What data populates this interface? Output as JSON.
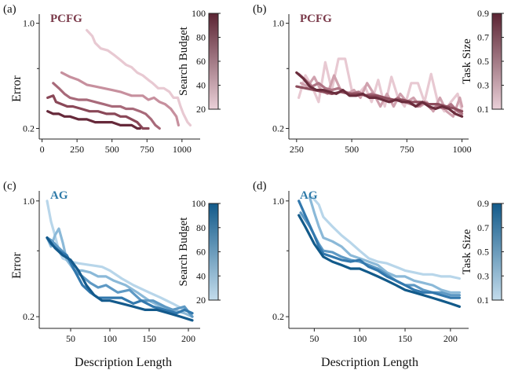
{
  "shared": {
    "ylabel": "Error",
    "xlabel": "Description Length"
  },
  "chart_data": [
    {
      "id": "a",
      "panel_label": "(a)",
      "type": "line",
      "method": "PCFG",
      "method_color": "#7a3a4a",
      "xlim": [
        -20,
        1130
      ],
      "xticks": [
        0,
        250,
        500,
        750,
        1000
      ],
      "ylim": [
        0.17,
        1.15
      ],
      "ylog": true,
      "yticks": [
        1.0,
        0.2
      ],
      "yminor": [
        0.5
      ],
      "colorbar": {
        "label": "Search Budget",
        "range": [
          20,
          100
        ],
        "ticks": [
          20,
          40,
          60,
          80,
          100
        ],
        "colors": [
          "#ead0d8",
          "#5b2433"
        ]
      },
      "series": [
        {
          "param": 20,
          "color": "#e8c9d2",
          "x": [
            320,
            360,
            380,
            420,
            470,
            520,
            560,
            600,
            640,
            680,
            720,
            760,
            790,
            830,
            870,
            910,
            940,
            970,
            990,
            1010,
            1040,
            1060
          ],
          "y": [
            0.9,
            0.82,
            0.74,
            0.68,
            0.66,
            0.61,
            0.57,
            0.53,
            0.51,
            0.47,
            0.45,
            0.42,
            0.4,
            0.37,
            0.37,
            0.35,
            0.32,
            0.32,
            0.28,
            0.25,
            0.22,
            0.21
          ]
        },
        {
          "param": 40,
          "color": "#c7909e",
          "x": [
            140,
            200,
            260,
            320,
            380,
            440,
            500,
            560,
            600,
            640,
            680,
            720,
            760,
            800,
            840,
            880,
            920,
            960,
            975
          ],
          "y": [
            0.47,
            0.44,
            0.42,
            0.39,
            0.38,
            0.37,
            0.36,
            0.35,
            0.34,
            0.33,
            0.33,
            0.33,
            0.31,
            0.32,
            0.3,
            0.29,
            0.27,
            0.24,
            0.21
          ]
        },
        {
          "param": 60,
          "color": "#a86a7a",
          "x": [
            80,
            120,
            160,
            200,
            260,
            320,
            380,
            440,
            500,
            560,
            600,
            650,
            700,
            740,
            780,
            810,
            840
          ],
          "y": [
            0.4,
            0.37,
            0.34,
            0.32,
            0.31,
            0.31,
            0.3,
            0.29,
            0.28,
            0.28,
            0.27,
            0.27,
            0.26,
            0.25,
            0.23,
            0.21,
            0.2
          ]
        },
        {
          "param": 80,
          "color": "#8a4858",
          "x": [
            40,
            80,
            100,
            140,
            180,
            220,
            280,
            340,
            400,
            460,
            520,
            560,
            600,
            640,
            680,
            720,
            760
          ],
          "y": [
            0.32,
            0.33,
            0.3,
            0.29,
            0.28,
            0.28,
            0.27,
            0.26,
            0.26,
            0.25,
            0.25,
            0.24,
            0.24,
            0.23,
            0.22,
            0.2,
            0.2
          ]
        },
        {
          "param": 100,
          "color": "#66293a",
          "x": [
            40,
            80,
            120,
            160,
            200,
            260,
            320,
            380,
            440,
            500,
            560,
            600,
            640,
            680,
            700
          ],
          "y": [
            0.26,
            0.25,
            0.25,
            0.24,
            0.24,
            0.23,
            0.23,
            0.22,
            0.22,
            0.22,
            0.21,
            0.21,
            0.21,
            0.2,
            0.2
          ]
        }
      ]
    },
    {
      "id": "b",
      "panel_label": "(b)",
      "type": "line",
      "method": "PCFG",
      "method_color": "#7a3a4a",
      "xlim": [
        215,
        1030
      ],
      "xticks": [
        250,
        500,
        750,
        1000
      ],
      "ylim": [
        0.17,
        1.15
      ],
      "ylog": true,
      "yticks": [
        1.0,
        0.2
      ],
      "yminor": [
        0.5
      ],
      "colorbar": {
        "label": "Task Size",
        "range": [
          0.1,
          0.9
        ],
        "ticks": [
          0.1,
          0.3,
          0.5,
          0.7,
          0.9
        ],
        "colors": [
          "#ead0d8",
          "#5b2433"
        ]
      },
      "series": [
        {
          "param": 0.1,
          "color": "#e8c9d2",
          "x": [
            260,
            290,
            320,
            350,
            380,
            410,
            440,
            470,
            500,
            530,
            560,
            590,
            620,
            650,
            680,
            710,
            740,
            770,
            800,
            830,
            860,
            890,
            920,
            950,
            980,
            1000
          ],
          "y": [
            0.32,
            0.45,
            0.38,
            0.3,
            0.55,
            0.36,
            0.58,
            0.58,
            0.36,
            0.34,
            0.38,
            0.3,
            0.42,
            0.28,
            0.44,
            0.32,
            0.28,
            0.4,
            0.4,
            0.3,
            0.46,
            0.3,
            0.26,
            0.3,
            0.34,
            0.26
          ]
        },
        {
          "param": 0.3,
          "color": "#d0a1ae",
          "x": [
            270,
            300,
            330,
            360,
            390,
            420,
            450,
            480,
            510,
            540,
            570,
            600,
            630,
            660,
            690,
            720,
            750,
            780,
            810,
            840,
            870,
            900,
            930,
            960,
            990,
            1000
          ],
          "y": [
            0.4,
            0.38,
            0.44,
            0.36,
            0.34,
            0.45,
            0.36,
            0.34,
            0.36,
            0.32,
            0.4,
            0.34,
            0.28,
            0.34,
            0.28,
            0.34,
            0.3,
            0.32,
            0.28,
            0.3,
            0.26,
            0.32,
            0.26,
            0.24,
            0.32,
            0.28
          ]
        },
        {
          "param": 0.5,
          "color": "#b07585",
          "x": [
            260,
            290,
            320,
            350,
            380,
            410,
            440,
            470,
            500,
            530,
            560,
            590,
            620,
            650,
            680,
            710,
            740,
            770,
            800,
            830,
            860,
            890,
            920,
            950,
            980,
            1000
          ],
          "y": [
            0.46,
            0.42,
            0.38,
            0.4,
            0.37,
            0.36,
            0.37,
            0.35,
            0.34,
            0.35,
            0.33,
            0.34,
            0.33,
            0.32,
            0.3,
            0.32,
            0.3,
            0.29,
            0.28,
            0.3,
            0.27,
            0.28,
            0.27,
            0.29,
            0.26,
            0.25
          ]
        },
        {
          "param": 0.7,
          "color": "#8e4d5d",
          "x": [
            250,
            290,
            330,
            370,
            410,
            450,
            490,
            530,
            570,
            610,
            650,
            690,
            730,
            770,
            810,
            850,
            890,
            930,
            970,
            1000
          ],
          "y": [
            0.38,
            0.37,
            0.36,
            0.35,
            0.34,
            0.35,
            0.34,
            0.34,
            0.33,
            0.33,
            0.32,
            0.31,
            0.31,
            0.3,
            0.3,
            0.29,
            0.29,
            0.28,
            0.27,
            0.26
          ]
        },
        {
          "param": 0.9,
          "color": "#6a2c3c",
          "x": [
            250,
            280,
            310,
            340,
            370,
            400,
            430,
            460,
            490,
            520,
            550,
            580,
            610,
            640,
            670,
            700,
            730,
            760,
            790,
            820,
            850,
            880,
            910,
            940,
            970,
            1000
          ],
          "y": [
            0.47,
            0.43,
            0.38,
            0.36,
            0.36,
            0.35,
            0.34,
            0.36,
            0.33,
            0.33,
            0.34,
            0.32,
            0.32,
            0.31,
            0.3,
            0.31,
            0.3,
            0.3,
            0.28,
            0.3,
            0.28,
            0.27,
            0.28,
            0.27,
            0.25,
            0.24
          ]
        }
      ]
    },
    {
      "id": "c",
      "panel_label": "(c)",
      "type": "line",
      "method": "AG",
      "method_color": "#2e7aa8",
      "xlim": [
        10,
        215
      ],
      "xticks": [
        50,
        100,
        150,
        200
      ],
      "ylim": [
        0.17,
        1.15
      ],
      "ylog": true,
      "yticks": [
        1.0,
        0.2
      ],
      "yminor": [
        0.5
      ],
      "colorbar": {
        "label": "Search Budget",
        "range": [
          20,
          100
        ],
        "ticks": [
          20,
          40,
          60,
          80,
          100
        ],
        "colors": [
          "#c3dcec",
          "#125a8a"
        ]
      },
      "series": [
        {
          "param": 20,
          "color": "#b8d6ea",
          "x": [
            20,
            25,
            30,
            35,
            40,
            50,
            60,
            75,
            90,
            100,
            115,
            130,
            150,
            165,
            180,
            195,
            205
          ],
          "y": [
            1.0,
            0.75,
            0.62,
            0.5,
            0.45,
            0.43,
            0.42,
            0.41,
            0.4,
            0.38,
            0.34,
            0.31,
            0.28,
            0.26,
            0.24,
            0.22,
            0.21
          ]
        },
        {
          "param": 40,
          "color": "#8bb9d8",
          "x": [
            20,
            25,
            30,
            35,
            40,
            45,
            55,
            65,
            75,
            85,
            95,
            105,
            120,
            135,
            150,
            165,
            180,
            195,
            205
          ],
          "y": [
            0.6,
            0.53,
            0.62,
            0.68,
            0.56,
            0.44,
            0.38,
            0.38,
            0.37,
            0.35,
            0.35,
            0.33,
            0.31,
            0.28,
            0.25,
            0.23,
            0.22,
            0.21,
            0.2
          ]
        },
        {
          "param": 60,
          "color": "#5e99c4",
          "x": [
            20,
            25,
            30,
            35,
            45,
            55,
            65,
            75,
            85,
            95,
            110,
            125,
            140,
            155,
            170,
            180,
            195,
            205
          ],
          "y": [
            0.6,
            0.58,
            0.55,
            0.52,
            0.47,
            0.38,
            0.35,
            0.32,
            0.3,
            0.31,
            0.28,
            0.29,
            0.25,
            0.25,
            0.23,
            0.22,
            0.23,
            0.2
          ]
        },
        {
          "param": 80,
          "color": "#3278ad",
          "x": [
            20,
            25,
            35,
            45,
            55,
            65,
            75,
            85,
            100,
            115,
            130,
            140,
            155,
            170,
            185,
            195,
            205
          ],
          "y": [
            0.6,
            0.55,
            0.5,
            0.47,
            0.38,
            0.31,
            0.28,
            0.26,
            0.26,
            0.26,
            0.24,
            0.25,
            0.23,
            0.22,
            0.21,
            0.22,
            0.21
          ]
        },
        {
          "param": 100,
          "color": "#145a8c",
          "x": [
            20,
            30,
            40,
            50,
            60,
            70,
            80,
            90,
            100,
            115,
            130,
            145,
            160,
            175,
            190,
            205
          ],
          "y": [
            0.6,
            0.52,
            0.47,
            0.44,
            0.38,
            0.31,
            0.27,
            0.25,
            0.25,
            0.24,
            0.23,
            0.22,
            0.22,
            0.21,
            0.2,
            0.19
          ]
        }
      ]
    },
    {
      "id": "d",
      "panel_label": "(d)",
      "type": "line",
      "method": "AG",
      "method_color": "#2e7aa8",
      "xlim": [
        22,
        220
      ],
      "xticks": [
        50,
        100,
        150,
        200
      ],
      "ylim": [
        0.17,
        1.15
      ],
      "ylog": true,
      "yticks": [
        1.0,
        0.2
      ],
      "yminor": [
        0.5
      ],
      "colorbar": {
        "label": "Task Size",
        "range": [
          0.1,
          0.9
        ],
        "ticks": [
          0.1,
          0.3,
          0.5,
          0.7,
          0.9
        ],
        "colors": [
          "#c3dcec",
          "#125a8a"
        ]
      },
      "series": [
        {
          "param": 0.1,
          "color": "#b8d6ea",
          "x": [
            48,
            55,
            60,
            70,
            80,
            90,
            100,
            110,
            120,
            130,
            140,
            150,
            160,
            170,
            180,
            190,
            200,
            210
          ],
          "y": [
            1.05,
            0.95,
            0.8,
            0.7,
            0.62,
            0.56,
            0.5,
            0.45,
            0.43,
            0.42,
            0.4,
            0.38,
            0.37,
            0.36,
            0.36,
            0.35,
            0.35,
            0.34
          ]
        },
        {
          "param": 0.3,
          "color": "#8bb9d8",
          "x": [
            45,
            50,
            55,
            60,
            70,
            80,
            90,
            100,
            110,
            120,
            130,
            140,
            150,
            160,
            170,
            180,
            190,
            200,
            210
          ],
          "y": [
            1.05,
            0.85,
            0.7,
            0.6,
            0.57,
            0.53,
            0.47,
            0.45,
            0.43,
            0.41,
            0.37,
            0.35,
            0.35,
            0.33,
            0.32,
            0.31,
            0.29,
            0.28,
            0.28
          ]
        },
        {
          "param": 0.5,
          "color": "#5e99c4",
          "x": [
            35,
            45,
            55,
            60,
            70,
            80,
            90,
            100,
            110,
            120,
            130,
            140,
            150,
            160,
            170,
            180,
            190,
            200,
            210
          ],
          "y": [
            0.85,
            0.7,
            0.55,
            0.5,
            0.49,
            0.46,
            0.44,
            0.43,
            0.41,
            0.39,
            0.36,
            0.33,
            0.31,
            0.31,
            0.29,
            0.28,
            0.28,
            0.27,
            0.27
          ]
        },
        {
          "param": 0.7,
          "color": "#3278ad",
          "x": [
            33,
            40,
            50,
            55,
            60,
            70,
            80,
            90,
            100,
            110,
            120,
            130,
            140,
            150,
            160,
            170,
            180,
            190,
            200,
            210
          ],
          "y": [
            1.0,
            0.82,
            0.62,
            0.53,
            0.48,
            0.46,
            0.44,
            0.43,
            0.44,
            0.4,
            0.38,
            0.35,
            0.33,
            0.31,
            0.29,
            0.28,
            0.28,
            0.27,
            0.26,
            0.26
          ]
        },
        {
          "param": 0.9,
          "color": "#125a8a",
          "x": [
            33,
            40,
            50,
            60,
            70,
            80,
            90,
            100,
            110,
            120,
            130,
            140,
            150,
            160,
            170,
            180,
            190,
            200,
            210
          ],
          "y": [
            0.82,
            0.7,
            0.55,
            0.46,
            0.43,
            0.41,
            0.39,
            0.39,
            0.37,
            0.35,
            0.33,
            0.31,
            0.29,
            0.28,
            0.27,
            0.26,
            0.25,
            0.24,
            0.23
          ]
        }
      ]
    }
  ]
}
